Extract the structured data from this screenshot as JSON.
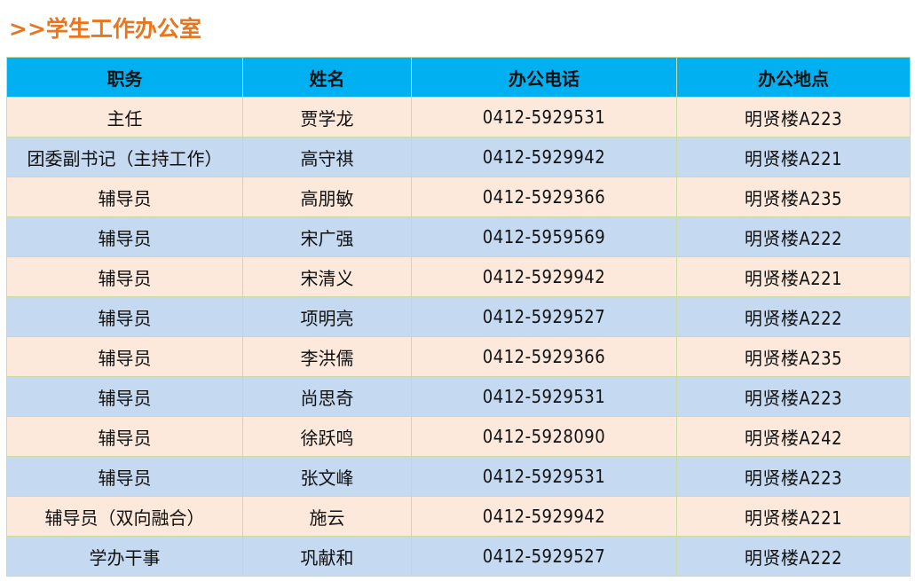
{
  "title": ">>学生工作办公室",
  "colors": {
    "title": "#e8761e",
    "header_bg": "#00b0f0",
    "row_odd": "#fce9db",
    "row_even": "#c5d9f1",
    "border": "#c9dca4"
  },
  "table": {
    "headers": [
      "职务",
      "姓名",
      "办公电话",
      "办公地点"
    ],
    "rows": [
      [
        "主任",
        "贾学龙",
        "0412-5929531",
        "明贤楼A223"
      ],
      [
        "团委副书记（主持工作）",
        "高守祺",
        "0412-5929942",
        "明贤楼A221"
      ],
      [
        "辅导员",
        "高朋敏",
        "0412-5929366",
        "明贤楼A235"
      ],
      [
        "辅导员",
        "宋广强",
        "0412-5959569",
        "明贤楼A222"
      ],
      [
        "辅导员",
        "宋清义",
        "0412-5929942",
        "明贤楼A221"
      ],
      [
        "辅导员",
        "项明亮",
        "0412-5929527",
        "明贤楼A222"
      ],
      [
        "辅导员",
        "李洪儒",
        "0412-5929366",
        "明贤楼A235"
      ],
      [
        "辅导员",
        "尚思奇",
        "0412-5929531",
        "明贤楼A223"
      ],
      [
        "辅导员",
        "徐跃鸣",
        "0412-5928090",
        "明贤楼A242"
      ],
      [
        "辅导员",
        "张文峰",
        "0412-5929531",
        "明贤楼A223"
      ],
      [
        "辅导员（双向融合）",
        "施云",
        "0412-5929942",
        "明贤楼A221"
      ],
      [
        "学办干事",
        "巩献和",
        "0412-5929527",
        "明贤楼A222"
      ]
    ]
  }
}
